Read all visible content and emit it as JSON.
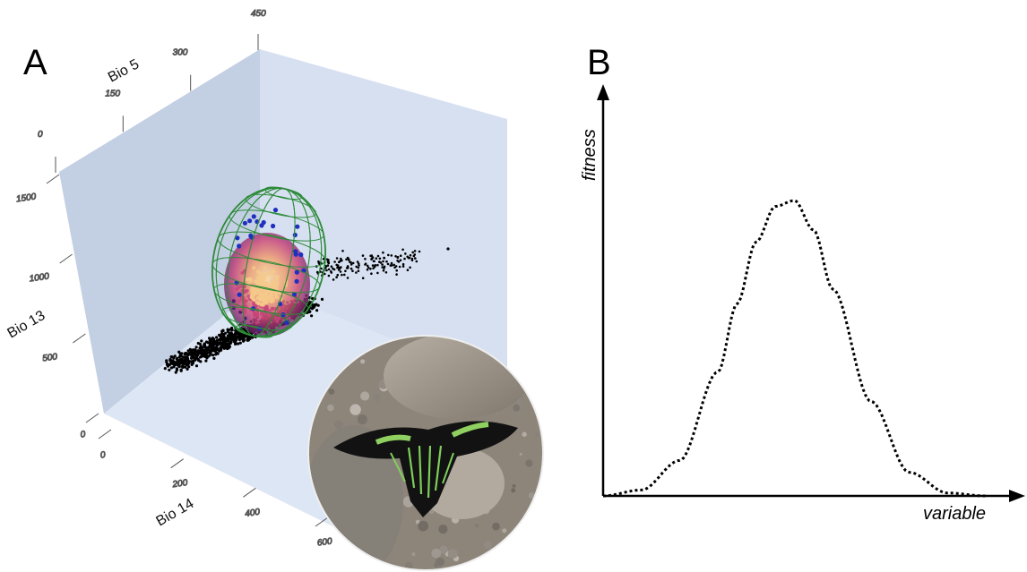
{
  "panels": {
    "a_label": "A",
    "b_label": "B"
  },
  "chart_data": [
    {
      "type": "scatter",
      "projection": "3d",
      "axes": {
        "z_label": "Bio 5",
        "z_ticks": [
          "0",
          "150",
          "300",
          "450"
        ],
        "y_label": "Bio 13",
        "y_ticks": [
          "0",
          "500",
          "1000",
          "1500"
        ],
        "x_label": "Bio 14",
        "x_ticks": [
          "0",
          "200",
          "400",
          "600"
        ]
      },
      "ellipsoid": {
        "center": {
          "bio14": 220,
          "bio13": 780,
          "bio5": 210
        },
        "color": "#2e8b3a"
      },
      "point_colors": {
        "background": "#000000",
        "density_high": "#f5c98a",
        "density_mid": "#c8467a",
        "density_low": "#3a1263",
        "occurrence": "#1f2fbf"
      },
      "inset_photo": {
        "subject": "moth-photo"
      }
    },
    {
      "type": "line",
      "style": "dotted",
      "xlabel": "variable",
      "ylabel": "fitness",
      "curve": "gaussian",
      "x": [
        0,
        0.1,
        0.2,
        0.3,
        0.35,
        0.4,
        0.45,
        0.5,
        0.55,
        0.6,
        0.7,
        0.8,
        0.9,
        1.0
      ],
      "y": [
        0.0,
        0.02,
        0.12,
        0.42,
        0.65,
        0.86,
        0.98,
        1.0,
        0.9,
        0.7,
        0.32,
        0.08,
        0.01,
        0.0
      ],
      "color": "#000000"
    }
  ]
}
